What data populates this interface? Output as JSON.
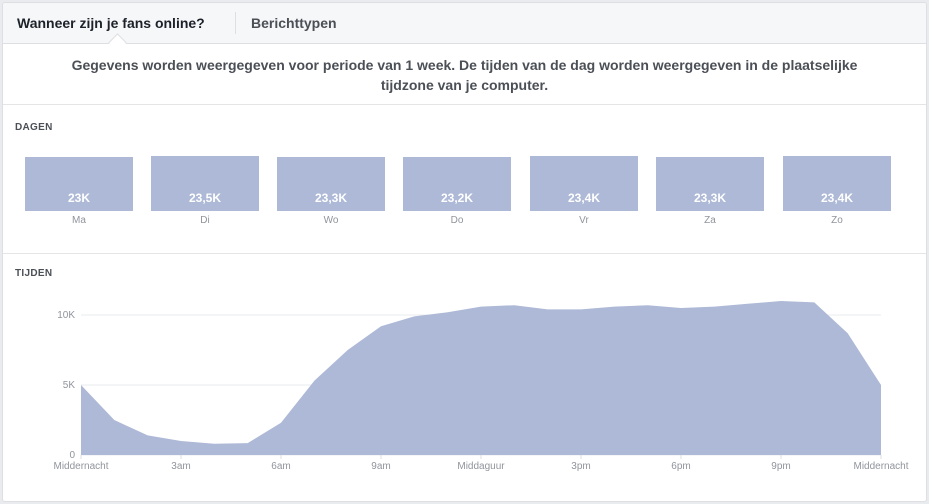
{
  "tabs": {
    "active_label": "Wanneer zijn je fans online?",
    "second_label": "Berichttypen"
  },
  "notice": {
    "line1": "Gegevens worden weergegeven voor periode van 1 week. De tijden van de dag worden weergegeven in de plaatselijke",
    "line2": "tijdzone van je computer."
  },
  "days_section": {
    "label": "DAGEN",
    "days": [
      {
        "label": "Ma",
        "value_text": "23K",
        "value": 23000
      },
      {
        "label": "Di",
        "value_text": "23,5K",
        "value": 23500
      },
      {
        "label": "Wo",
        "value_text": "23,3K",
        "value": 23300
      },
      {
        "label": "Do",
        "value_text": "23,2K",
        "value": 23200
      },
      {
        "label": "Vr",
        "value_text": "23,4K",
        "value": 23400
      },
      {
        "label": "Za",
        "value_text": "23,3K",
        "value": 23300
      },
      {
        "label": "Zo",
        "value_text": "23,4K",
        "value": 23400
      }
    ]
  },
  "times_section": {
    "label": "TIJDEN"
  },
  "colors": {
    "bar": "#adb9d6",
    "area": "#adb9d6",
    "text": "#4b4f56",
    "axis_text": "#90949c"
  },
  "chart_data": {
    "type": "area",
    "x": [
      0,
      1,
      2,
      3,
      4,
      5,
      6,
      7,
      8,
      9,
      10,
      11,
      12,
      13,
      14,
      15,
      16,
      17,
      18,
      19,
      20,
      21,
      22,
      23,
      24
    ],
    "values": [
      5000,
      2500,
      1400,
      1000,
      800,
      850,
      2300,
      5300,
      7500,
      9200,
      9900,
      10200,
      10600,
      10700,
      10400,
      10400,
      10600,
      10700,
      10500,
      10600,
      10800,
      11000,
      10900,
      8700,
      5000
    ],
    "ylim": [
      0,
      10000
    ],
    "yticks": [
      0,
      5000,
      10000
    ],
    "ytick_labels": [
      "0",
      "5K",
      "10K"
    ],
    "xticks": [
      0,
      3,
      6,
      9,
      12,
      15,
      18,
      21,
      24
    ],
    "xtick_labels": [
      "Middernacht",
      "3am",
      "6am",
      "9am",
      "Middaguur",
      "3pm",
      "6pm",
      "9pm",
      "Middernacht"
    ],
    "xlabel": "",
    "ylabel": "",
    "grid": true
  }
}
